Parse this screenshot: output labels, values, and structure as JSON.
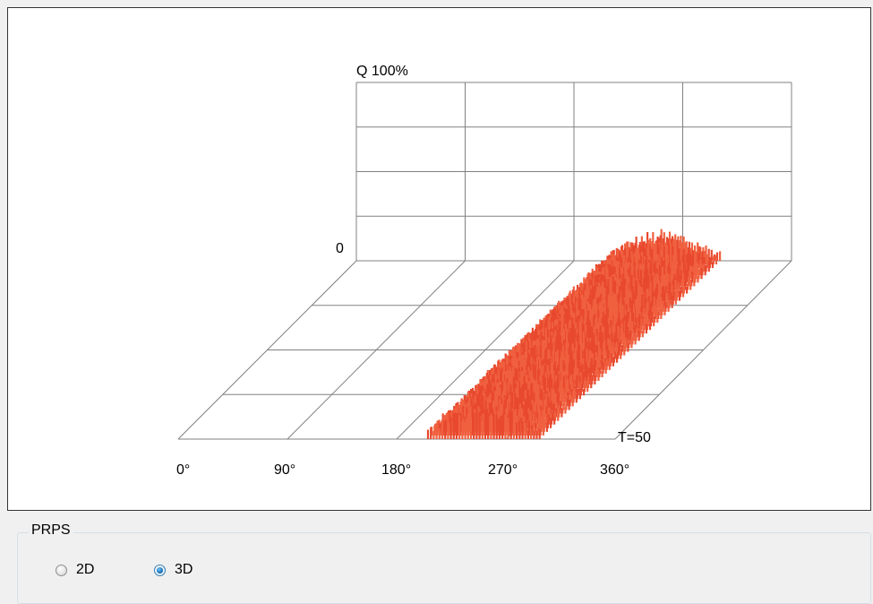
{
  "group": {
    "title": "PRPS",
    "options": [
      {
        "label": "2D",
        "checked": false
      },
      {
        "label": "3D",
        "checked": true
      }
    ]
  },
  "chart_data": {
    "type": "3d-bar",
    "title": "",
    "y_axis_label": "Q 100%",
    "y_min_label": "0",
    "depth_label": "T=50",
    "x_tick_labels": [
      "0°",
      "90°",
      "180°",
      "270°",
      "360°"
    ],
    "x_range_degrees": [
      0,
      360
    ],
    "cycles": 50,
    "z_range_percent": [
      0,
      100
    ],
    "grid": true,
    "bar_color": "#e8492e",
    "bar_color_light": "#f0603f",
    "grid_color": "#808080",
    "pulse_band": {
      "phase_start_front_deg": 205,
      "phase_end_front_deg": 297,
      "phase_start_back_deg": 210,
      "phase_end_back_deg": 300,
      "approx_amplitude_percent": 18
    }
  }
}
